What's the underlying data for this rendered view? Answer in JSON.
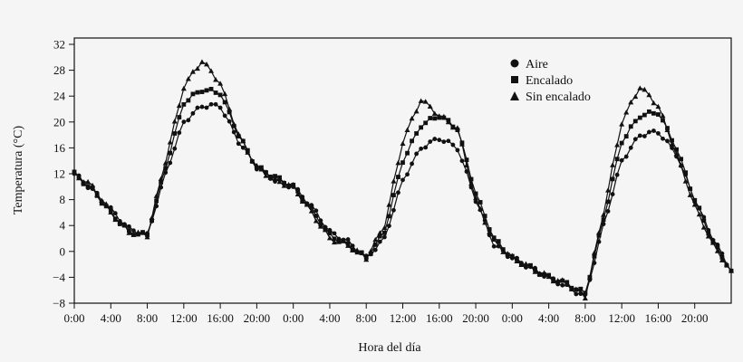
{
  "chart_data": {
    "type": "line",
    "title": "",
    "xlabel": "Hora del día",
    "ylabel": "Temperatura (°C)",
    "ylim": [
      -8,
      32
    ],
    "yticks": [
      32,
      28,
      24,
      20,
      16,
      12,
      8,
      4,
      0,
      -4,
      -8
    ],
    "xlim_hours": [
      0,
      72
    ],
    "xtick_hours": [
      0,
      4,
      8,
      12,
      16,
      20,
      24,
      28,
      32,
      36,
      40,
      44,
      48,
      52,
      56,
      60,
      64,
      68
    ],
    "xtick_labels": [
      "0:00",
      "4:00",
      "8:00",
      "12:00",
      "16:00",
      "20:00",
      "0:00",
      "4:00",
      "8:00",
      "12:00",
      "16:00",
      "20:00",
      "0:00",
      "4:00",
      "8:00",
      "12:00",
      "16:00",
      "20:00"
    ],
    "grid": false,
    "legend_position": "upper right (inside)",
    "x_hours": [
      0,
      2,
      4,
      6,
      8,
      10,
      12,
      14,
      16,
      18,
      20,
      22,
      24,
      26,
      28,
      30,
      32,
      34,
      36,
      38,
      40,
      42,
      44,
      46,
      48,
      50,
      52,
      54,
      56,
      58,
      60,
      62,
      64,
      66,
      68,
      70,
      72
    ],
    "series": [
      {
        "name": "Aire",
        "marker": "circle",
        "values": [
          12,
          9.5,
          6.5,
          3.5,
          2.5,
          12,
          20,
          22.5,
          22.5,
          17,
          13,
          11,
          10,
          7,
          3,
          1.5,
          -1,
          2,
          11,
          16,
          17.5,
          16,
          8,
          1,
          -1,
          -2.5,
          -4,
          -5.5,
          -7,
          4,
          14,
          18,
          18.5,
          15,
          8,
          2,
          -3
        ]
      },
      {
        "name": "Encalado",
        "marker": "square",
        "values": [
          12,
          9.5,
          6,
          3,
          2.5,
          13,
          23,
          25,
          24.5,
          18,
          13,
          11.5,
          10,
          6.5,
          2.5,
          1,
          -1,
          3,
          14,
          19.5,
          21,
          19,
          9,
          2,
          -1,
          -2.5,
          -4,
          -5,
          -6.5,
          5,
          17,
          21,
          21.5,
          16,
          8,
          1.5,
          -3
        ]
      },
      {
        "name": "Sin encalado",
        "marker": "triangle",
        "values": [
          12,
          10,
          6,
          3,
          2.5,
          14,
          25.5,
          29.5,
          26,
          18,
          13,
          11,
          10,
          6,
          2,
          1,
          -1,
          4,
          17,
          23.5,
          21,
          19,
          8,
          1.5,
          -1,
          -2.5,
          -4,
          -5,
          -7,
          6,
          20,
          25.5,
          22.5,
          15,
          7,
          1,
          -3
        ]
      }
    ]
  },
  "legend": {
    "items": [
      {
        "label": "Aire",
        "marker": "circle"
      },
      {
        "label": "Encalado",
        "marker": "square"
      },
      {
        "label": "Sin encalado",
        "marker": "triangle"
      }
    ]
  },
  "axes": {
    "x_title": "Hora del día",
    "y_title": "Temperatura (°C)"
  },
  "colors": {
    "background": "#f5f5f5",
    "ink": "#111111"
  }
}
